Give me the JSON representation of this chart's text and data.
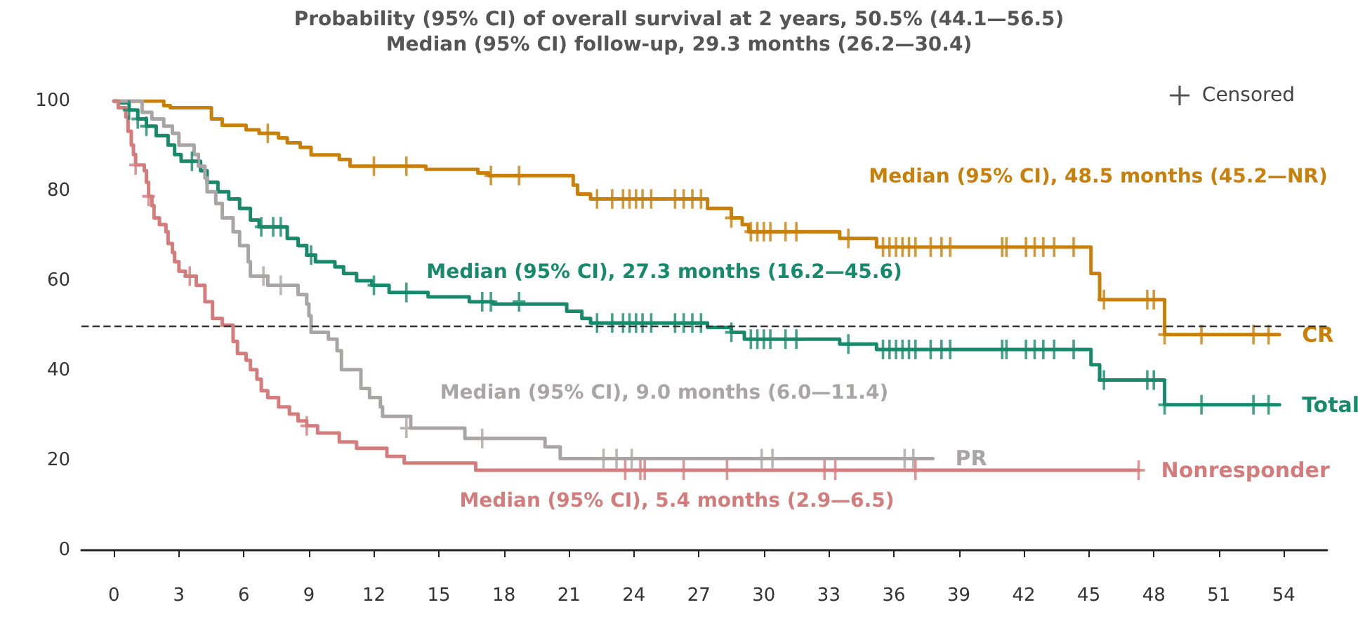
{
  "chart_data": {
    "type": "step",
    "title": "Probability (95% CI) of overall survival at 2 years, 50.5% (44.1—56.5)",
    "subtitle": "Median (95% CI) follow-up, 29.3 months (26.2—30.4)",
    "annotations": [
      "Median (95% CI), 48.5 months (45.2—NR)",
      "Median (95% CI), 27.3 months (16.2—45.6)",
      "Median (95% CI), 9.0 months (6.0—11.4)",
      "Median (95% CI), 5.4 months (2.9—6.5)"
    ],
    "xlim": [
      -1.5,
      56
    ],
    "xticks": [
      0,
      3,
      6,
      9,
      12,
      15,
      18,
      21,
      24,
      27,
      30,
      33,
      36,
      39,
      42,
      45,
      48,
      51,
      54
    ],
    "ylim": [
      0,
      100
    ],
    "yticks": [
      0,
      20,
      40,
      60,
      80,
      100
    ],
    "grid": false,
    "legend_title": "Censored",
    "marker": "none",
    "line_style": "solid",
    "ref_lines": [
      {
        "axis": "y",
        "value": 50,
        "color": "#333333",
        "line_style": "dashed"
      }
    ],
    "series": [
      {
        "name": "CR",
        "color": "#c8800a",
        "x": [
          0,
          2.3,
          2.6,
          4.5,
          5,
          6.1,
          6.7,
          7.6,
          8,
          8.6,
          9.1,
          10.4,
          10.9,
          14.4,
          16.8,
          17.3,
          21.2,
          21.4,
          22,
          27.4,
          28.5,
          29,
          29.3,
          33.5,
          35.2,
          45.1,
          45.5,
          48.5,
          53.8
        ],
        "values": [
          100,
          99,
          98.5,
          96,
          94.6,
          93.6,
          92.8,
          91.8,
          90.7,
          89.7,
          88,
          87,
          85.5,
          84.8,
          84,
          83.4,
          81.3,
          79.3,
          78.2,
          76.1,
          74,
          72.5,
          70.9,
          69.4,
          67.5,
          61.6,
          55.8,
          48,
          48
        ]
      },
      {
        "name": "Total",
        "color": "#168a6a",
        "x": [
          0,
          0.2,
          0.7,
          1.1,
          1.5,
          1.95,
          2.5,
          2.8,
          3.1,
          4,
          4.3,
          4.8,
          5.3,
          5.8,
          6.3,
          6.7,
          8,
          8.5,
          8.9,
          9.3,
          10.2,
          10.6,
          11.2,
          11.9,
          12.7,
          14.5,
          16.4,
          17.5,
          20.9,
          21.6,
          22,
          27.4,
          28.5,
          29.1,
          33.5,
          35.2,
          45.1,
          45.5,
          48.5,
          53.8
        ],
        "values": [
          100,
          99.6,
          98,
          96,
          94.4,
          92.3,
          90.2,
          88.1,
          86.6,
          84.5,
          81.9,
          79.8,
          78.2,
          76.1,
          73.5,
          72,
          69.4,
          67.8,
          65.7,
          64.2,
          63.1,
          61.6,
          60,
          59,
          57.4,
          56.4,
          55.3,
          54.8,
          53.2,
          51.6,
          50.6,
          49.6,
          48.5,
          47,
          45.9,
          44.7,
          41.3,
          37.9,
          32.4,
          32.4
        ]
      },
      {
        "name": "PR",
        "color": "#aaa5a5",
        "x": [
          0,
          1.3,
          1.75,
          2.3,
          2.7,
          3,
          3.7,
          3.9,
          4.2,
          4.3,
          4.7,
          5,
          5.5,
          5.8,
          6.2,
          6.3,
          7.1,
          8.5,
          8.9,
          9.0,
          9.1,
          9.9,
          10.3,
          10.5,
          11.4,
          11.8,
          12.3,
          12.4,
          13.7,
          16.2,
          19.9,
          20.6,
          37.8
        ],
        "values": [
          100,
          97.5,
          96,
          94.4,
          92.8,
          90.2,
          88.1,
          85.5,
          82.9,
          79.8,
          77.2,
          74,
          70.9,
          67.8,
          64.2,
          61,
          59,
          56.9,
          54.8,
          52.2,
          48.5,
          47,
          44.4,
          40.2,
          36,
          34,
          31.9,
          29.8,
          27.2,
          24.9,
          23,
          20.4,
          20.4
        ]
      },
      {
        "name": "Nonresponder",
        "color": "#d47c7c",
        "x": [
          0,
          0.2,
          0.55,
          0.65,
          0.8,
          0.9,
          1.0,
          1.4,
          1.5,
          1.6,
          1.75,
          1.85,
          2.1,
          2.4,
          2.5,
          2.7,
          2.8,
          3.0,
          3.3,
          3.8,
          4.2,
          4.55,
          5,
          5.5,
          5.7,
          6.1,
          6.3,
          6.6,
          6.8,
          7.1,
          7.6,
          8.1,
          8.5,
          8.9,
          9.4,
          10.4,
          11.2,
          12.6,
          13.4,
          16.7,
          47.3
        ],
        "values": [
          100,
          98.5,
          96.5,
          93.3,
          90.2,
          88.1,
          85.8,
          84.5,
          81.9,
          78.8,
          76.7,
          74,
          72.5,
          70.9,
          68.3,
          66.3,
          64.2,
          62.1,
          61,
          59,
          55.3,
          51.6,
          50.1,
          46.5,
          43.8,
          42.3,
          40.2,
          38.1,
          35.5,
          34,
          31.9,
          30.3,
          28.8,
          27.7,
          26.1,
          24.1,
          22.7,
          20.9,
          19.4,
          17.8,
          17.8
        ]
      },
      {
        "type": "scatter",
        "marker": "cross",
        "color": "#c8800a",
        "x": [
          7.1,
          12,
          13.5,
          17.4,
          18.7,
          22.3,
          23,
          23.5,
          23.8,
          24.1,
          24.4,
          24.8,
          25.9,
          26.3,
          26.7,
          27.1,
          28.5,
          29.4,
          29.7,
          30,
          30.3,
          31,
          31.5,
          33.9,
          35.5,
          35.8,
          36.1,
          36.4,
          36.7,
          37,
          37.7,
          38.2,
          38.6,
          41,
          41.2,
          42.1,
          42.5,
          42.9,
          43.4,
          44.3,
          45.7,
          47.7,
          48,
          48.5,
          50.2,
          52.6,
          53.3
        ],
        "values": [
          92.8,
          85.5,
          85.5,
          83.4,
          83.4,
          78.2,
          78.2,
          78.2,
          78.2,
          78.2,
          78.2,
          78.2,
          78.2,
          78.2,
          78.2,
          78.2,
          74,
          70.9,
          70.9,
          70.9,
          70.9,
          70.9,
          70.9,
          69.4,
          67.5,
          67.5,
          67.5,
          67.5,
          67.5,
          67.5,
          67.5,
          67.5,
          67.5,
          67.5,
          67.5,
          67.5,
          67.5,
          67.5,
          67.5,
          67.5,
          55.8,
          55.8,
          55.8,
          48,
          48,
          48,
          48
        ]
      },
      {
        "type": "scatter",
        "marker": "cross",
        "color": "#168a6a",
        "x": [
          0.7,
          1.1,
          1.5,
          3.6,
          6.8,
          7.35,
          7.7,
          9.1,
          12,
          13.5,
          17,
          17.4,
          18.7,
          22.3,
          23,
          23.5,
          23.8,
          24.1,
          24.4,
          24.8,
          25.9,
          26.3,
          26.7,
          27.1,
          28.5,
          29.4,
          29.7,
          30,
          30.3,
          31,
          31.5,
          33.9,
          35.5,
          35.8,
          36.1,
          36.4,
          36.7,
          37,
          37.7,
          38.2,
          38.6,
          41,
          41.2,
          42.1,
          42.5,
          42.9,
          43.4,
          44.3,
          45.7,
          47.7,
          48,
          48.5,
          50.2,
          52.6,
          53.3
        ],
        "values": [
          98,
          96,
          94.4,
          86.6,
          72,
          72,
          72,
          65.7,
          59,
          57.4,
          55.3,
          55.3,
          55.3,
          50.6,
          50.6,
          50.6,
          50.6,
          50.6,
          50.6,
          50.6,
          50.6,
          50.6,
          50.6,
          50.6,
          48.5,
          47,
          47,
          47,
          47,
          47,
          47,
          45.9,
          44.7,
          44.7,
          44.7,
          44.7,
          44.7,
          44.7,
          44.7,
          44.7,
          44.7,
          44.7,
          44.7,
          44.7,
          44.7,
          44.7,
          44.7,
          44.7,
          37.9,
          37.9,
          37.9,
          32.4,
          32.4,
          32.4,
          32.4
        ]
      },
      {
        "type": "scatter",
        "marker": "cross",
        "color": "#aaa5a5",
        "x": [
          6.9,
          7.7,
          13.5,
          17,
          22.6,
          23.2,
          23.9,
          29.9,
          30.4,
          36.5,
          36.9
        ],
        "values": [
          61,
          59,
          27.2,
          24.9,
          20.4,
          20.4,
          20.4,
          20.4,
          20.4,
          20.4,
          20.4
        ]
      },
      {
        "type": "scatter",
        "marker": "cross",
        "color": "#d47c7c",
        "x": [
          1.0,
          1.6,
          3.5,
          8.9,
          23.6,
          24.3,
          24.5,
          26.3,
          28.3,
          32.8,
          33.3,
          37,
          47.3
        ],
        "values": [
          85.8,
          78.8,
          61,
          27.7,
          17.8,
          17.8,
          17.8,
          17.8,
          17.8,
          17.8,
          17.8,
          17.8,
          17.8
        ]
      }
    ]
  }
}
